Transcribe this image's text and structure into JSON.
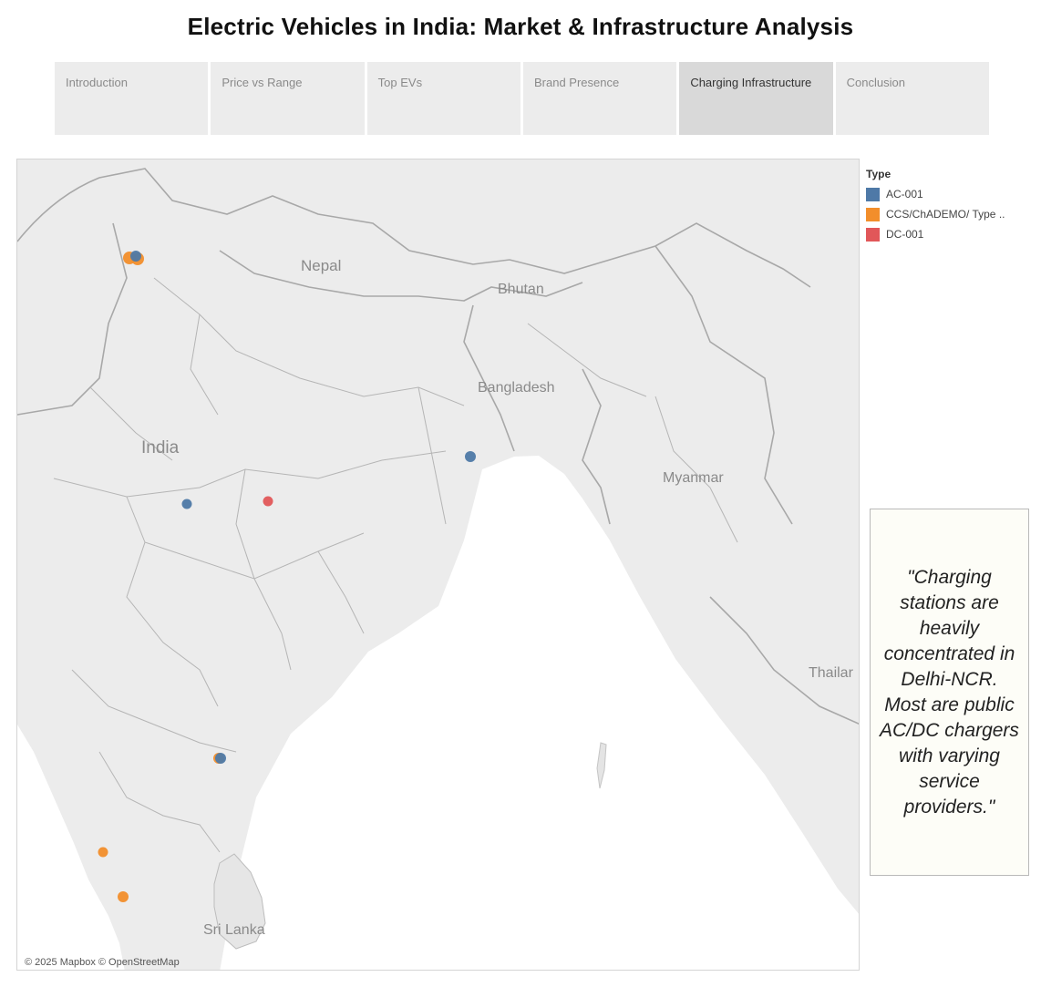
{
  "title": "Electric Vehicles in India: Market & Infrastructure Analysis",
  "tabs": [
    {
      "label": "Introduction",
      "active": false
    },
    {
      "label": "Price vs Range",
      "active": false
    },
    {
      "label": "Top EVs",
      "active": false
    },
    {
      "label": "Brand Presence",
      "active": false
    },
    {
      "label": "Charging Infrastructure",
      "active": true
    },
    {
      "label": "Conclusion",
      "active": false
    }
  ],
  "legend": {
    "title": "Type",
    "items": [
      {
        "label": "AC-001",
        "color": "#4e79a7"
      },
      {
        "label": "CCS/ChADEMO/ Type ..",
        "color": "#f28e2b"
      },
      {
        "label": "DC-001",
        "color": "#e15759"
      }
    ]
  },
  "map": {
    "country_labels": [
      "Nepal",
      "Bhutan",
      "Bangladesh",
      "India",
      "Myanmar",
      "Thailar",
      "Sri Lanka"
    ],
    "attribution": "© 2025 Mapbox © OpenStreetMap",
    "stations": [
      {
        "location": "Delhi-NCR",
        "type": "CCS/ChADEMO/ Type .."
      },
      {
        "location": "Delhi-NCR",
        "type": "CCS/ChADEMO/ Type .."
      },
      {
        "location": "Delhi-NCR",
        "type": "AC-001"
      },
      {
        "location": "Kolkata",
        "type": "AC-001"
      },
      {
        "location": "Madhya Pradesh",
        "type": "AC-001"
      },
      {
        "location": "Chhattisgarh",
        "type": "DC-001"
      },
      {
        "location": "Chennai",
        "type": "CCS/ChADEMO/ Type .."
      },
      {
        "location": "Chennai",
        "type": "AC-001"
      },
      {
        "location": "Kerala (north)",
        "type": "CCS/ChADEMO/ Type .."
      },
      {
        "location": "Kerala (south)",
        "type": "CCS/ChADEMO/ Type .."
      }
    ]
  },
  "note": "\"Charging stations are heavily concentrated in Delhi-NCR. Most are public AC/DC chargers with varying service providers.\""
}
